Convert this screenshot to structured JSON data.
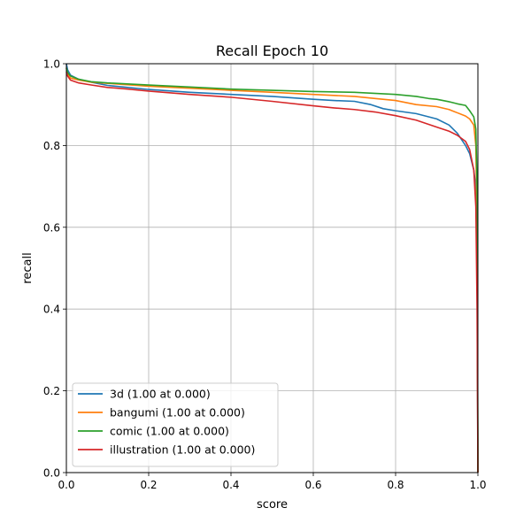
{
  "chart_data": {
    "type": "line",
    "title": "Recall Epoch 10",
    "xlabel": "score",
    "ylabel": "recall",
    "xlim": [
      0,
      1
    ],
    "ylim": [
      0,
      1
    ],
    "xticks": [
      "0.0",
      "0.2",
      "0.4",
      "0.6",
      "0.8",
      "1.0"
    ],
    "yticks": [
      "0.0",
      "0.2",
      "0.4",
      "0.6",
      "0.8",
      "1.0"
    ],
    "grid": true,
    "legend_position": "lower-left",
    "series": [
      {
        "name": "3d (1.00 at 0.000)",
        "color": "#1f77b4",
        "points": [
          [
            0,
            1.0
          ],
          [
            0.003,
            0.985
          ],
          [
            0.01,
            0.972
          ],
          [
            0.03,
            0.962
          ],
          [
            0.06,
            0.955
          ],
          [
            0.1,
            0.947
          ],
          [
            0.2,
            0.937
          ],
          [
            0.3,
            0.93
          ],
          [
            0.4,
            0.925
          ],
          [
            0.5,
            0.92
          ],
          [
            0.6,
            0.913
          ],
          [
            0.65,
            0.91
          ],
          [
            0.7,
            0.908
          ],
          [
            0.74,
            0.9
          ],
          [
            0.77,
            0.89
          ],
          [
            0.8,
            0.885
          ],
          [
            0.85,
            0.878
          ],
          [
            0.9,
            0.865
          ],
          [
            0.93,
            0.85
          ],
          [
            0.95,
            0.83
          ],
          [
            0.97,
            0.8
          ],
          [
            0.98,
            0.78
          ],
          [
            0.99,
            0.74
          ],
          [
            0.995,
            0.7
          ],
          [
            0.998,
            0.5
          ],
          [
            1.0,
            0.0
          ]
        ]
      },
      {
        "name": "bangumi (1.00 at 0.000)",
        "color": "#ff7f0e",
        "points": [
          [
            0,
            0.99
          ],
          [
            0.003,
            0.975
          ],
          [
            0.01,
            0.965
          ],
          [
            0.03,
            0.96
          ],
          [
            0.06,
            0.955
          ],
          [
            0.1,
            0.952
          ],
          [
            0.2,
            0.945
          ],
          [
            0.3,
            0.94
          ],
          [
            0.4,
            0.935
          ],
          [
            0.5,
            0.93
          ],
          [
            0.6,
            0.925
          ],
          [
            0.7,
            0.92
          ],
          [
            0.75,
            0.915
          ],
          [
            0.8,
            0.91
          ],
          [
            0.85,
            0.9
          ],
          [
            0.9,
            0.895
          ],
          [
            0.93,
            0.888
          ],
          [
            0.95,
            0.88
          ],
          [
            0.97,
            0.872
          ],
          [
            0.98,
            0.865
          ],
          [
            0.99,
            0.85
          ],
          [
            0.995,
            0.8
          ],
          [
            0.998,
            0.6
          ],
          [
            1.0,
            0.0
          ]
        ]
      },
      {
        "name": "comic (1.00 at 0.000)",
        "color": "#2ca02c",
        "points": [
          [
            0,
            0.99
          ],
          [
            0.003,
            0.978
          ],
          [
            0.01,
            0.97
          ],
          [
            0.03,
            0.962
          ],
          [
            0.06,
            0.956
          ],
          [
            0.1,
            0.953
          ],
          [
            0.2,
            0.948
          ],
          [
            0.3,
            0.943
          ],
          [
            0.4,
            0.938
          ],
          [
            0.5,
            0.935
          ],
          [
            0.6,
            0.932
          ],
          [
            0.7,
            0.93
          ],
          [
            0.8,
            0.925
          ],
          [
            0.85,
            0.92
          ],
          [
            0.88,
            0.915
          ],
          [
            0.9,
            0.913
          ],
          [
            0.93,
            0.907
          ],
          [
            0.95,
            0.902
          ],
          [
            0.97,
            0.898
          ],
          [
            0.98,
            0.885
          ],
          [
            0.99,
            0.87
          ],
          [
            0.995,
            0.84
          ],
          [
            0.998,
            0.7
          ],
          [
            1.0,
            0.0
          ]
        ]
      },
      {
        "name": "illustration (1.00 at 0.000)",
        "color": "#d62728",
        "points": [
          [
            0,
            0.98
          ],
          [
            0.003,
            0.97
          ],
          [
            0.01,
            0.96
          ],
          [
            0.03,
            0.953
          ],
          [
            0.06,
            0.948
          ],
          [
            0.1,
            0.942
          ],
          [
            0.15,
            0.938
          ],
          [
            0.2,
            0.933
          ],
          [
            0.3,
            0.925
          ],
          [
            0.4,
            0.918
          ],
          [
            0.5,
            0.908
          ],
          [
            0.6,
            0.897
          ],
          [
            0.65,
            0.892
          ],
          [
            0.7,
            0.888
          ],
          [
            0.75,
            0.882
          ],
          [
            0.8,
            0.873
          ],
          [
            0.85,
            0.862
          ],
          [
            0.9,
            0.845
          ],
          [
            0.93,
            0.835
          ],
          [
            0.95,
            0.825
          ],
          [
            0.97,
            0.81
          ],
          [
            0.98,
            0.79
          ],
          [
            0.99,
            0.74
          ],
          [
            0.995,
            0.65
          ],
          [
            0.998,
            0.4
          ],
          [
            1.0,
            0.0
          ]
        ]
      }
    ]
  }
}
